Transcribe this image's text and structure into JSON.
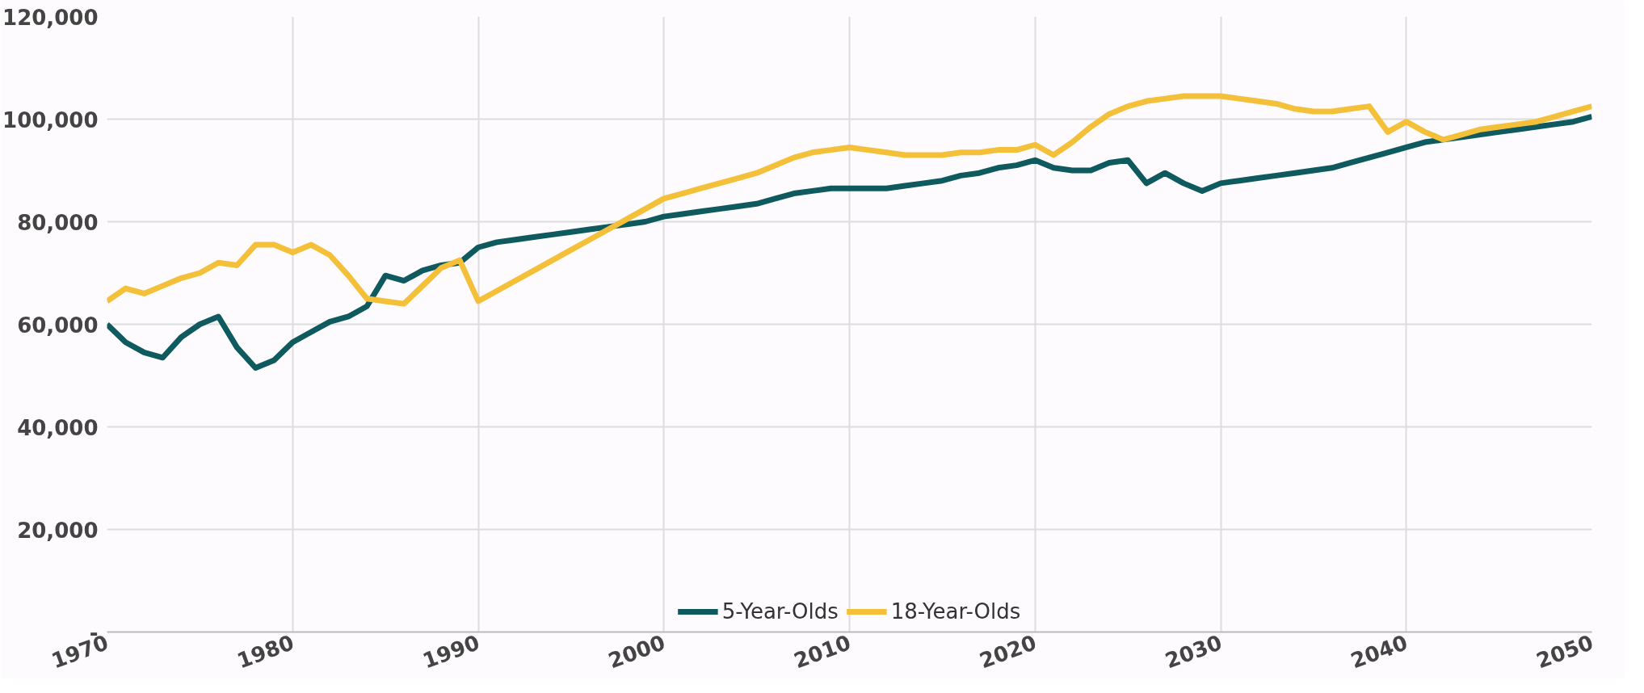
{
  "chart_data": {
    "type": "line",
    "x": [
      1970,
      1971,
      1972,
      1973,
      1974,
      1975,
      1976,
      1977,
      1978,
      1979,
      1980,
      1981,
      1982,
      1983,
      1984,
      1985,
      1986,
      1987,
      1988,
      1989,
      1990,
      1991,
      1992,
      1993,
      1994,
      1995,
      1996,
      1997,
      1998,
      1999,
      2000,
      2001,
      2002,
      2003,
      2004,
      2005,
      2006,
      2007,
      2008,
      2009,
      2010,
      2011,
      2012,
      2013,
      2014,
      2015,
      2016,
      2017,
      2018,
      2019,
      2020,
      2021,
      2022,
      2023,
      2024,
      2025,
      2026,
      2027,
      2028,
      2029,
      2030,
      2031,
      2032,
      2033,
      2034,
      2035,
      2036,
      2037,
      2038,
      2039,
      2040,
      2041,
      2042,
      2043,
      2044,
      2045,
      2046,
      2047,
      2048,
      2049,
      2050
    ],
    "series": [
      {
        "name": "5-Year-Olds",
        "color": "#0f5a5e",
        "values": [
          60000,
          56500,
          54500,
          53500,
          57500,
          60000,
          61500,
          55500,
          51500,
          53000,
          56500,
          58500,
          60500,
          61500,
          63500,
          69500,
          68500,
          70500,
          71500,
          72000,
          75000,
          76000,
          76500,
          77000,
          77500,
          78000,
          78500,
          79000,
          79500,
          80000,
          81000,
          81500,
          82000,
          82500,
          83000,
          83500,
          84500,
          85500,
          86000,
          86500,
          86500,
          86500,
          86500,
          87000,
          87500,
          88000,
          89000,
          89500,
          90500,
          91000,
          92000,
          90500,
          90000,
          90000,
          91500,
          92000,
          87500,
          89500,
          87500,
          86000,
          87500,
          88000,
          88500,
          89000,
          89500,
          90000,
          90500,
          91500,
          92500,
          93500,
          94500,
          95500,
          96000,
          96500,
          97000,
          97500,
          98000,
          98500,
          99000,
          99500,
          100500
        ]
      },
      {
        "name": "18-Year-Olds",
        "color": "#f4c03a",
        "values": [
          64500,
          67000,
          66000,
          67500,
          69000,
          70000,
          72000,
          71500,
          75500,
          75500,
          74000,
          75500,
          73500,
          69500,
          65000,
          64500,
          64000,
          67500,
          71000,
          72500,
          64500,
          66500,
          68500,
          70500,
          72500,
          74500,
          76500,
          78500,
          80500,
          82500,
          84500,
          85500,
          86500,
          87500,
          88500,
          89500,
          91000,
          92500,
          93500,
          94000,
          94500,
          94000,
          93500,
          93000,
          93000,
          93000,
          93500,
          93500,
          94000,
          94000,
          95000,
          93000,
          95500,
          98500,
          101000,
          102500,
          103500,
          104000,
          104500,
          104500,
          104500,
          104000,
          103500,
          103000,
          102000,
          101500,
          101500,
          102000,
          102500,
          97500,
          99500,
          97500,
          96000,
          97000,
          98000,
          98500,
          99000,
          99500,
          100500,
          101500,
          102500
        ]
      }
    ],
    "xlim": [
      1970,
      2050
    ],
    "xticks": [
      1970,
      1980,
      1990,
      2000,
      2010,
      2020,
      2030,
      2040,
      2050
    ],
    "ylim": [
      0,
      120000
    ],
    "yticks": [
      {
        "value": 0,
        "label": "-"
      },
      {
        "value": 20000,
        "label": "20,000"
      },
      {
        "value": 40000,
        "label": "40,000"
      },
      {
        "value": 60000,
        "label": "60,000"
      },
      {
        "value": 80000,
        "label": "80,000"
      },
      {
        "value": 100000,
        "label": "100,000"
      },
      {
        "value": 120000,
        "label": "120,000"
      }
    ],
    "grid": true,
    "legend": "bottom",
    "line_style": "solid"
  }
}
